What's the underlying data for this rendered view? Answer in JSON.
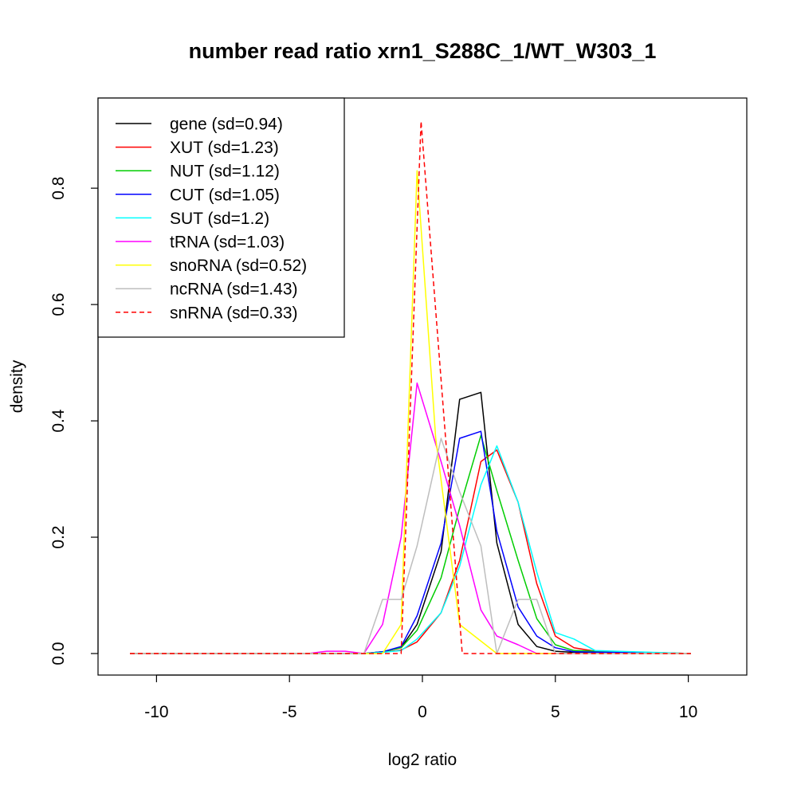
{
  "chart_data": {
    "type": "line",
    "title": "number read ratio xrn1_S288C_1/WT_W303_1",
    "xlabel": "log2 ratio",
    "ylabel": "density",
    "xlim": [
      -12.2,
      12.2
    ],
    "ylim": [
      -0.037,
      0.955
    ],
    "x_ticks": [
      -10,
      -5,
      0,
      5,
      10
    ],
    "x_tick_labels": [
      "-10",
      "-5",
      "0",
      "5",
      "10"
    ],
    "y_ticks": [
      0,
      0.2,
      0.4,
      0.6,
      0.8
    ],
    "y_tick_labels": [
      "0.0",
      "0.2",
      "0.4",
      "0.6",
      "0.8"
    ],
    "grid": false,
    "legend_position": "top-left",
    "series": [
      {
        "name": "gene (sd=0.94)",
        "color": "#000000",
        "dashed": false,
        "points": [
          [
            -11,
            0
          ],
          [
            -2.2,
            0
          ],
          [
            -1.5,
            0.003
          ],
          [
            -0.8,
            0.01
          ],
          [
            -0.2,
            0.05
          ],
          [
            0.7,
            0.175
          ],
          [
            1.4,
            0.437
          ],
          [
            2.2,
            0.449
          ],
          [
            2.8,
            0.19
          ],
          [
            3.6,
            0.05
          ],
          [
            4.3,
            0.012
          ],
          [
            5.0,
            0.004
          ],
          [
            5.7,
            0.002
          ],
          [
            10.1,
            0
          ]
        ]
      },
      {
        "name": "XUT (sd=1.23)",
        "color": "#ff0000",
        "dashed": false,
        "points": [
          [
            -11,
            0
          ],
          [
            -2.2,
            0
          ],
          [
            -1.5,
            0.002
          ],
          [
            -0.8,
            0.006
          ],
          [
            -0.2,
            0.02
          ],
          [
            0.7,
            0.07
          ],
          [
            1.4,
            0.16
          ],
          [
            2.2,
            0.33
          ],
          [
            2.8,
            0.35
          ],
          [
            3.6,
            0.26
          ],
          [
            4.3,
            0.12
          ],
          [
            5.0,
            0.03
          ],
          [
            5.7,
            0.01
          ],
          [
            6.5,
            0.004
          ],
          [
            10.1,
            0
          ]
        ]
      },
      {
        "name": "NUT (sd=1.12)",
        "color": "#00cd00",
        "dashed": false,
        "points": [
          [
            -11,
            0
          ],
          [
            -2.2,
            0
          ],
          [
            -1.5,
            0.003
          ],
          [
            -0.8,
            0.01
          ],
          [
            -0.2,
            0.04
          ],
          [
            0.7,
            0.13
          ],
          [
            1.4,
            0.25
          ],
          [
            2.2,
            0.375
          ],
          [
            2.8,
            0.28
          ],
          [
            3.6,
            0.16
          ],
          [
            4.3,
            0.06
          ],
          [
            5.0,
            0.015
          ],
          [
            5.7,
            0.005
          ],
          [
            10.1,
            0
          ]
        ]
      },
      {
        "name": "CUT (sd=1.05)",
        "color": "#0000ff",
        "dashed": false,
        "points": [
          [
            -11,
            0
          ],
          [
            -2.2,
            0
          ],
          [
            -1.5,
            0.003
          ],
          [
            -0.8,
            0.012
          ],
          [
            -0.2,
            0.065
          ],
          [
            0.7,
            0.19
          ],
          [
            1.4,
            0.37
          ],
          [
            2.2,
            0.382
          ],
          [
            2.8,
            0.21
          ],
          [
            3.6,
            0.08
          ],
          [
            4.3,
            0.03
          ],
          [
            5.0,
            0.01
          ],
          [
            5.7,
            0.003
          ],
          [
            10.1,
            0
          ]
        ]
      },
      {
        "name": "SUT (sd=1.2)",
        "color": "#00ffff",
        "dashed": false,
        "points": [
          [
            -11,
            0
          ],
          [
            -2.2,
            0
          ],
          [
            -1.5,
            0.002
          ],
          [
            -0.8,
            0.005
          ],
          [
            -0.2,
            0.025
          ],
          [
            0.7,
            0.07
          ],
          [
            1.4,
            0.15
          ],
          [
            2.2,
            0.29
          ],
          [
            2.8,
            0.357
          ],
          [
            3.6,
            0.26
          ],
          [
            4.3,
            0.14
          ],
          [
            5.0,
            0.036
          ],
          [
            5.7,
            0.025
          ],
          [
            6.5,
            0.005
          ],
          [
            10.1,
            0
          ]
        ]
      },
      {
        "name": "tRNA (sd=1.03)",
        "color": "#ff00ff",
        "dashed": false,
        "points": [
          [
            -11,
            0
          ],
          [
            -4.3,
            0
          ],
          [
            -3.6,
            0.004
          ],
          [
            -2.9,
            0.004
          ],
          [
            -2.2,
            0
          ],
          [
            -1.5,
            0.05
          ],
          [
            -0.8,
            0.2
          ],
          [
            -0.2,
            0.465
          ],
          [
            0.7,
            0.33
          ],
          [
            1.4,
            0.22
          ],
          [
            2.2,
            0.075
          ],
          [
            2.8,
            0.03
          ],
          [
            3.6,
            0.015
          ],
          [
            4.3,
            0
          ],
          [
            10.1,
            0
          ]
        ]
      },
      {
        "name": "snoRNA (sd=0.52)",
        "color": "#ffff00",
        "dashed": false,
        "points": [
          [
            -11,
            0
          ],
          [
            -1.5,
            0
          ],
          [
            -0.8,
            0.05
          ],
          [
            -0.2,
            0.83
          ],
          [
            0.5,
            0.37
          ],
          [
            1.4,
            0.05
          ],
          [
            2.8,
            0
          ],
          [
            10.1,
            0
          ]
        ]
      },
      {
        "name": "ncRNA (sd=1.43)",
        "color": "#bebebe",
        "dashed": false,
        "points": [
          [
            -11,
            0
          ],
          [
            -2.2,
            0
          ],
          [
            -1.5,
            0.093
          ],
          [
            -0.8,
            0.093
          ],
          [
            -0.2,
            0.185
          ],
          [
            0.7,
            0.37
          ],
          [
            1.4,
            0.278
          ],
          [
            2.2,
            0.185
          ],
          [
            2.8,
            0
          ],
          [
            3.6,
            0.093
          ],
          [
            4.3,
            0.093
          ],
          [
            5.0,
            0
          ],
          [
            10.1,
            0
          ]
        ]
      },
      {
        "name": "snRNA (sd=0.33)",
        "color": "#ff0000",
        "dashed": true,
        "points": [
          [
            -11,
            0
          ],
          [
            -0.8,
            0
          ],
          [
            -0.05,
            0.915
          ],
          [
            1.5,
            0
          ],
          [
            10.1,
            0
          ]
        ]
      }
    ]
  }
}
